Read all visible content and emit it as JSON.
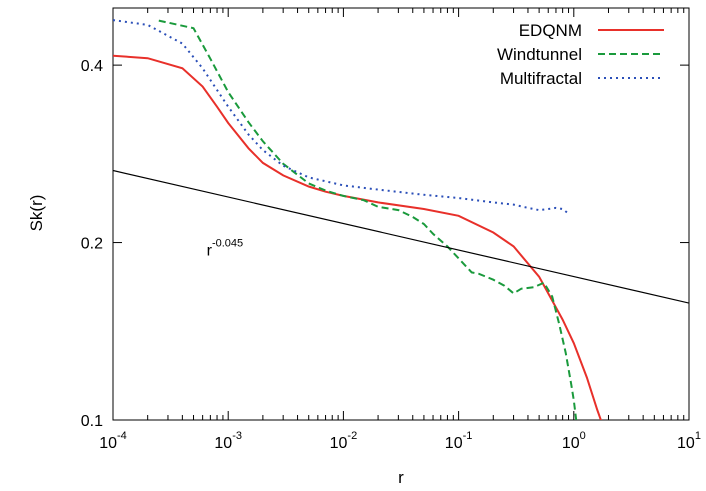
{
  "chart_data": {
    "type": "line",
    "xlabel": "r",
    "ylabel": "Sk(r)",
    "xscale": "log",
    "yscale": "log",
    "xlim": [
      0.0001,
      10
    ],
    "ylim": [
      0.1,
      0.5
    ],
    "x_ticks": [
      {
        "base": "10",
        "exp": "-4"
      },
      {
        "base": "10",
        "exp": "-3"
      },
      {
        "base": "10",
        "exp": "-2"
      },
      {
        "base": "10",
        "exp": "-1"
      },
      {
        "base": "10",
        "exp": "0"
      },
      {
        "base": "10",
        "exp": "1"
      }
    ],
    "y_ticks": [
      "0.1",
      "0.2",
      "0.4"
    ],
    "y_tick_values": [
      0.1,
      0.2,
      0.4
    ],
    "legend_position": "top-right",
    "series": [
      {
        "name": "EDQNM",
        "color": "#e8302a",
        "dash": "solid",
        "points": [
          [
            0.0001,
            0.415
          ],
          [
            0.0002,
            0.411
          ],
          [
            0.0004,
            0.395
          ],
          [
            0.0006,
            0.368
          ],
          [
            0.0008,
            0.34
          ],
          [
            0.001,
            0.319
          ],
          [
            0.0015,
            0.289
          ],
          [
            0.002,
            0.273
          ],
          [
            0.003,
            0.26
          ],
          [
            0.005,
            0.249
          ],
          [
            0.007,
            0.244
          ],
          [
            0.01,
            0.24
          ],
          [
            0.02,
            0.234
          ],
          [
            0.05,
            0.228
          ],
          [
            0.1,
            0.222
          ],
          [
            0.2,
            0.208
          ],
          [
            0.3,
            0.197
          ],
          [
            0.5,
            0.175
          ],
          [
            0.8,
            0.148
          ],
          [
            1.0,
            0.135
          ],
          [
            1.3,
            0.118
          ],
          [
            1.6,
            0.104
          ],
          [
            1.75,
            0.099
          ]
        ]
      },
      {
        "name": "Windtunnel",
        "color": "#1a9a3c",
        "dash": "dashed",
        "points": [
          [
            0.00025,
            0.476
          ],
          [
            0.0005,
            0.462
          ],
          [
            0.0007,
            0.41
          ],
          [
            0.001,
            0.36
          ],
          [
            0.0015,
            0.32
          ],
          [
            0.002,
            0.297
          ],
          [
            0.003,
            0.272
          ],
          [
            0.005,
            0.252
          ],
          [
            0.007,
            0.245
          ],
          [
            0.01,
            0.24
          ],
          [
            0.015,
            0.236
          ],
          [
            0.02,
            0.23
          ],
          [
            0.03,
            0.227
          ],
          [
            0.04,
            0.221
          ],
          [
            0.05,
            0.215
          ],
          [
            0.06,
            0.207
          ],
          [
            0.08,
            0.197
          ],
          [
            0.1,
            0.188
          ],
          [
            0.13,
            0.178
          ],
          [
            0.15,
            0.177
          ],
          [
            0.2,
            0.173
          ],
          [
            0.25,
            0.169
          ],
          [
            0.3,
            0.164
          ],
          [
            0.35,
            0.167
          ],
          [
            0.45,
            0.168
          ],
          [
            0.55,
            0.171
          ],
          [
            0.65,
            0.162
          ],
          [
            0.75,
            0.145
          ],
          [
            0.85,
            0.13
          ],
          [
            0.95,
            0.115
          ],
          [
            1.0,
            0.108
          ],
          [
            1.05,
            0.1
          ]
        ]
      },
      {
        "name": "Multifractal",
        "color": "#2b4fb8",
        "dash": "dotted",
        "points": [
          [
            0.0001,
            0.477
          ],
          [
            0.0002,
            0.468
          ],
          [
            0.0004,
            0.435
          ],
          [
            0.0006,
            0.395
          ],
          [
            0.001,
            0.34
          ],
          [
            0.0015,
            0.305
          ],
          [
            0.002,
            0.287
          ],
          [
            0.003,
            0.27
          ],
          [
            0.005,
            0.258
          ],
          [
            0.01,
            0.25
          ],
          [
            0.02,
            0.246
          ],
          [
            0.05,
            0.241
          ],
          [
            0.1,
            0.238
          ],
          [
            0.2,
            0.234
          ],
          [
            0.3,
            0.232
          ],
          [
            0.4,
            0.229
          ],
          [
            0.5,
            0.227
          ],
          [
            0.6,
            0.228
          ],
          [
            0.7,
            0.229
          ],
          [
            0.8,
            0.228
          ],
          [
            0.9,
            0.224
          ]
        ]
      },
      {
        "name": "",
        "color": "#000000",
        "dash": "solid",
        "points": [
          [
            0.0001,
            0.265
          ],
          [
            10,
            0.1579
          ]
        ]
      }
    ],
    "annotations": [
      {
        "text_base": "r",
        "text_exp": "-0.045",
        "x": 0.00065,
        "y": 0.19
      }
    ]
  }
}
